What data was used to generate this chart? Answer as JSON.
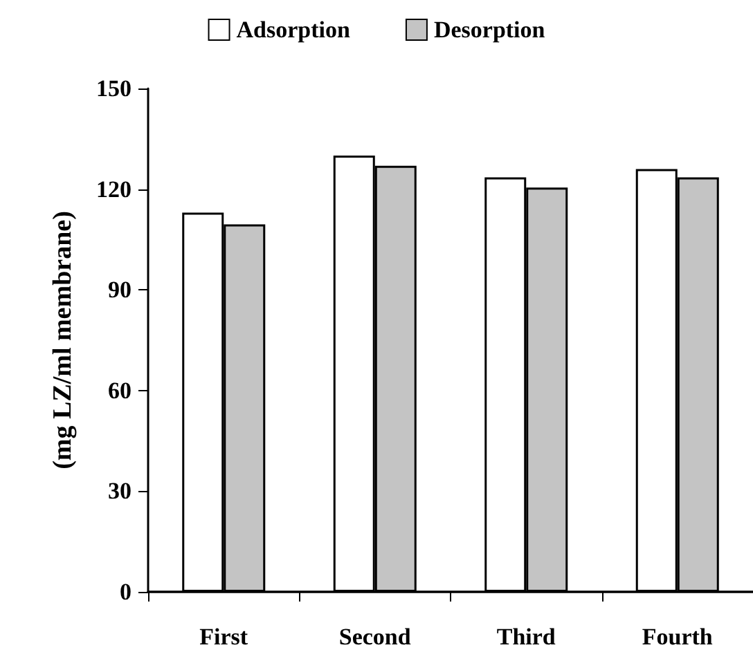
{
  "chart_data": {
    "type": "bar",
    "ylabel": "(mg LZ/ml membrane)",
    "categories": [
      "First",
      "Second",
      "Third",
      "Fourth"
    ],
    "series": [
      {
        "name": "Adsorption",
        "color": "#ffffff",
        "values": [
          113,
          130,
          123.5,
          126
        ]
      },
      {
        "name": "Desorption",
        "color": "#c4c4c4",
        "values": [
          109.5,
          127,
          120.5,
          123.5
        ]
      }
    ],
    "ylim": [
      0,
      150
    ],
    "yticks": [
      0,
      30,
      60,
      90,
      120,
      150
    ],
    "grid": false,
    "legend": "top"
  }
}
